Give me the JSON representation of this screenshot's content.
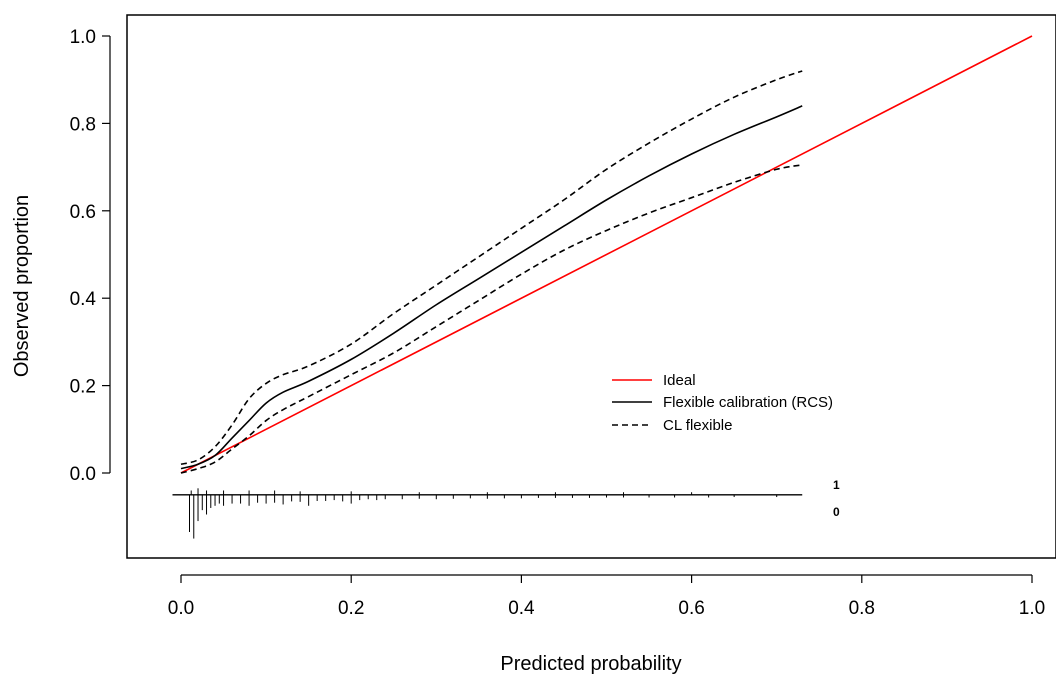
{
  "chart_data": {
    "type": "line",
    "title": "",
    "xlabel": "Predicted probability",
    "ylabel": "Observed proportion",
    "xlim": [
      0.0,
      1.0
    ],
    "ylim": [
      0.0,
      1.0
    ],
    "x_ticks": [
      "0.0",
      "0.2",
      "0.4",
      "0.6",
      "0.8",
      "1.0"
    ],
    "y_ticks": [
      "0.0",
      "0.2",
      "0.4",
      "0.6",
      "0.8",
      "1.0"
    ],
    "grid": false,
    "legend": {
      "position": "center-right",
      "entries": [
        "Ideal",
        "Flexible calibration (RCS)",
        "CL flexible"
      ]
    },
    "series": [
      {
        "name": "Ideal",
        "color": "#ff0000",
        "style": "solid",
        "x": [
          0.0,
          1.0
        ],
        "y": [
          0.0,
          1.0
        ]
      },
      {
        "name": "Flexible calibration (RCS)",
        "color": "#000000",
        "style": "solid",
        "x": [
          0.0,
          0.02,
          0.04,
          0.06,
          0.08,
          0.1,
          0.12,
          0.15,
          0.2,
          0.25,
          0.3,
          0.35,
          0.4,
          0.45,
          0.5,
          0.55,
          0.6,
          0.65,
          0.7,
          0.73
        ],
        "y": [
          0.01,
          0.02,
          0.04,
          0.08,
          0.12,
          0.16,
          0.185,
          0.21,
          0.26,
          0.32,
          0.385,
          0.445,
          0.505,
          0.565,
          0.625,
          0.68,
          0.73,
          0.775,
          0.815,
          0.84
        ]
      },
      {
        "name": "CL flexible",
        "role": "upper",
        "color": "#000000",
        "style": "dashed",
        "x": [
          0.0,
          0.02,
          0.04,
          0.06,
          0.08,
          0.1,
          0.12,
          0.15,
          0.2,
          0.25,
          0.3,
          0.35,
          0.4,
          0.45,
          0.5,
          0.55,
          0.6,
          0.65,
          0.7,
          0.73
        ],
        "y": [
          0.02,
          0.03,
          0.06,
          0.11,
          0.17,
          0.205,
          0.225,
          0.245,
          0.295,
          0.365,
          0.43,
          0.495,
          0.56,
          0.625,
          0.695,
          0.755,
          0.81,
          0.86,
          0.9,
          0.92
        ]
      },
      {
        "name": "CL flexible",
        "role": "lower",
        "color": "#000000",
        "style": "dashed",
        "x": [
          0.0,
          0.02,
          0.04,
          0.06,
          0.08,
          0.1,
          0.12,
          0.15,
          0.2,
          0.25,
          0.3,
          0.35,
          0.4,
          0.45,
          0.5,
          0.55,
          0.6,
          0.65,
          0.7,
          0.73
        ],
        "y": [
          0.0,
          0.01,
          0.025,
          0.055,
          0.085,
          0.12,
          0.145,
          0.175,
          0.225,
          0.275,
          0.335,
          0.395,
          0.455,
          0.51,
          0.555,
          0.595,
          0.63,
          0.665,
          0.695,
          0.705
        ]
      }
    ],
    "rug": {
      "labels": [
        "1",
        "0"
      ],
      "baseline_y": -0.05,
      "x_max": 0.73,
      "events": [
        {
          "x": 0.012,
          "h": 0.01
        },
        {
          "x": 0.02,
          "h": 0.015
        },
        {
          "x": 0.03,
          "h": 0.01
        },
        {
          "x": 0.05,
          "h": 0.01
        },
        {
          "x": 0.08,
          "h": 0.01
        },
        {
          "x": 0.11,
          "h": 0.01
        },
        {
          "x": 0.14,
          "h": 0.008
        },
        {
          "x": 0.2,
          "h": 0.008
        },
        {
          "x": 0.28,
          "h": 0.006
        },
        {
          "x": 0.36,
          "h": 0.006
        },
        {
          "x": 0.44,
          "h": 0.006
        },
        {
          "x": 0.52,
          "h": 0.006
        },
        {
          "x": 0.6,
          "h": 0.006
        }
      ],
      "nonevents": [
        {
          "x": 0.01,
          "h": 0.085
        },
        {
          "x": 0.015,
          "h": 0.1
        },
        {
          "x": 0.02,
          "h": 0.06
        },
        {
          "x": 0.025,
          "h": 0.035
        },
        {
          "x": 0.03,
          "h": 0.045
        },
        {
          "x": 0.035,
          "h": 0.03
        },
        {
          "x": 0.04,
          "h": 0.025
        },
        {
          "x": 0.045,
          "h": 0.02
        },
        {
          "x": 0.05,
          "h": 0.025
        },
        {
          "x": 0.06,
          "h": 0.02
        },
        {
          "x": 0.07,
          "h": 0.02
        },
        {
          "x": 0.08,
          "h": 0.025
        },
        {
          "x": 0.09,
          "h": 0.018
        },
        {
          "x": 0.1,
          "h": 0.02
        },
        {
          "x": 0.11,
          "h": 0.018
        },
        {
          "x": 0.12,
          "h": 0.022
        },
        {
          "x": 0.13,
          "h": 0.015
        },
        {
          "x": 0.14,
          "h": 0.016
        },
        {
          "x": 0.15,
          "h": 0.025
        },
        {
          "x": 0.16,
          "h": 0.014
        },
        {
          "x": 0.17,
          "h": 0.014
        },
        {
          "x": 0.18,
          "h": 0.012
        },
        {
          "x": 0.19,
          "h": 0.015
        },
        {
          "x": 0.2,
          "h": 0.02
        },
        {
          "x": 0.21,
          "h": 0.012
        },
        {
          "x": 0.22,
          "h": 0.01
        },
        {
          "x": 0.23,
          "h": 0.012
        },
        {
          "x": 0.24,
          "h": 0.01
        },
        {
          "x": 0.26,
          "h": 0.01
        },
        {
          "x": 0.28,
          "h": 0.009
        },
        {
          "x": 0.3,
          "h": 0.01
        },
        {
          "x": 0.32,
          "h": 0.009
        },
        {
          "x": 0.34,
          "h": 0.008
        },
        {
          "x": 0.36,
          "h": 0.009
        },
        {
          "x": 0.38,
          "h": 0.008
        },
        {
          "x": 0.4,
          "h": 0.008
        },
        {
          "x": 0.42,
          "h": 0.007
        },
        {
          "x": 0.44,
          "h": 0.007
        },
        {
          "x": 0.46,
          "h": 0.007
        },
        {
          "x": 0.48,
          "h": 0.007
        },
        {
          "x": 0.5,
          "h": 0.006
        },
        {
          "x": 0.52,
          "h": 0.006
        },
        {
          "x": 0.55,
          "h": 0.006
        },
        {
          "x": 0.58,
          "h": 0.006
        },
        {
          "x": 0.62,
          "h": 0.006
        },
        {
          "x": 0.65,
          "h": 0.005
        },
        {
          "x": 0.7,
          "h": 0.005
        }
      ]
    }
  }
}
